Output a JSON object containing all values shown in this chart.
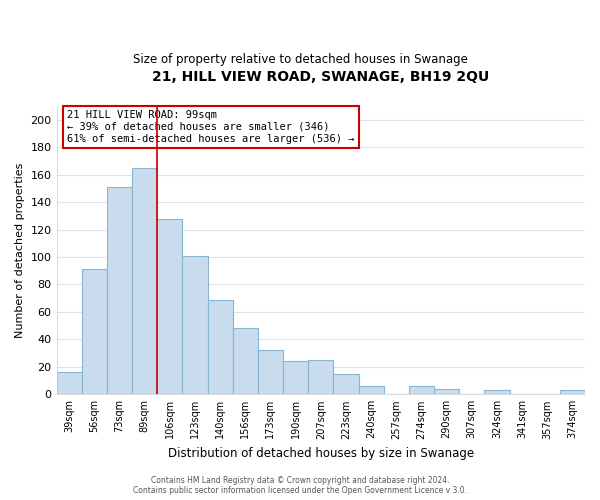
{
  "title": "21, HILL VIEW ROAD, SWANAGE, BH19 2QU",
  "subtitle": "Size of property relative to detached houses in Swanage",
  "xlabel": "Distribution of detached houses by size in Swanage",
  "ylabel": "Number of detached properties",
  "bar_color": "#c8dcee",
  "bar_edge_color": "#8ab4d4",
  "categories": [
    "39sqm",
    "56sqm",
    "73sqm",
    "89sqm",
    "106sqm",
    "123sqm",
    "140sqm",
    "156sqm",
    "173sqm",
    "190sqm",
    "207sqm",
    "223sqm",
    "240sqm",
    "257sqm",
    "274sqm",
    "290sqm",
    "307sqm",
    "324sqm",
    "341sqm",
    "357sqm",
    "374sqm"
  ],
  "values": [
    16,
    91,
    151,
    165,
    128,
    101,
    69,
    48,
    32,
    24,
    25,
    15,
    6,
    0,
    6,
    4,
    0,
    3,
    0,
    0,
    3
  ],
  "ylim": [
    0,
    210
  ],
  "yticks": [
    0,
    20,
    40,
    60,
    80,
    100,
    120,
    140,
    160,
    180,
    200
  ],
  "annotation_title": "21 HILL VIEW ROAD: 99sqm",
  "annotation_line1": "← 39% of detached houses are smaller (346)",
  "annotation_line2": "61% of semi-detached houses are larger (536) →",
  "annotation_box_color": "#ffffff",
  "annotation_box_edge_color": "#cc0000",
  "highlight_bar_index": 4,
  "red_line_color": "#cc0000",
  "footer_line1": "Contains HM Land Registry data © Crown copyright and database right 2024.",
  "footer_line2": "Contains public sector information licensed under the Open Government Licence v 3.0.",
  "background_color": "#ffffff",
  "grid_color": "#d8e4f0"
}
